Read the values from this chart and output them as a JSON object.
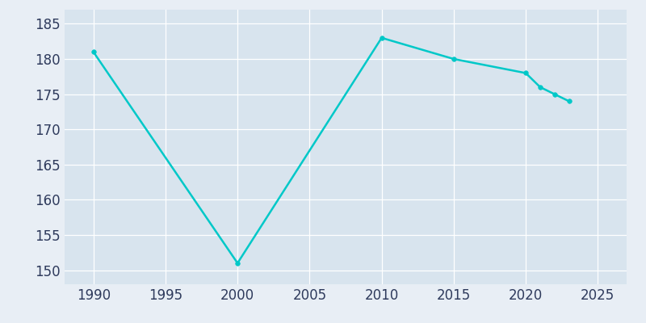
{
  "years": [
    1990,
    2000,
    2010,
    2015,
    2020,
    2021,
    2022,
    2023
  ],
  "population": [
    181,
    151,
    183,
    180,
    178,
    176,
    175,
    174
  ],
  "line_color": "#00C8C8",
  "marker_color": "#00C8C8",
  "fig_bg_color": "#E8EEF5",
  "plot_bg_color": "#D8E4EE",
  "grid_color": "#FFFFFF",
  "tick_color": "#2E3A5C",
  "xlim": [
    1988,
    2027
  ],
  "ylim": [
    148,
    187
  ],
  "xticks": [
    1990,
    1995,
    2000,
    2005,
    2010,
    2015,
    2020,
    2025
  ],
  "yticks": [
    150,
    155,
    160,
    165,
    170,
    175,
    180,
    185
  ],
  "figsize": [
    8.0,
    4.0
  ],
  "dpi": 100,
  "tick_fontsize": 12
}
